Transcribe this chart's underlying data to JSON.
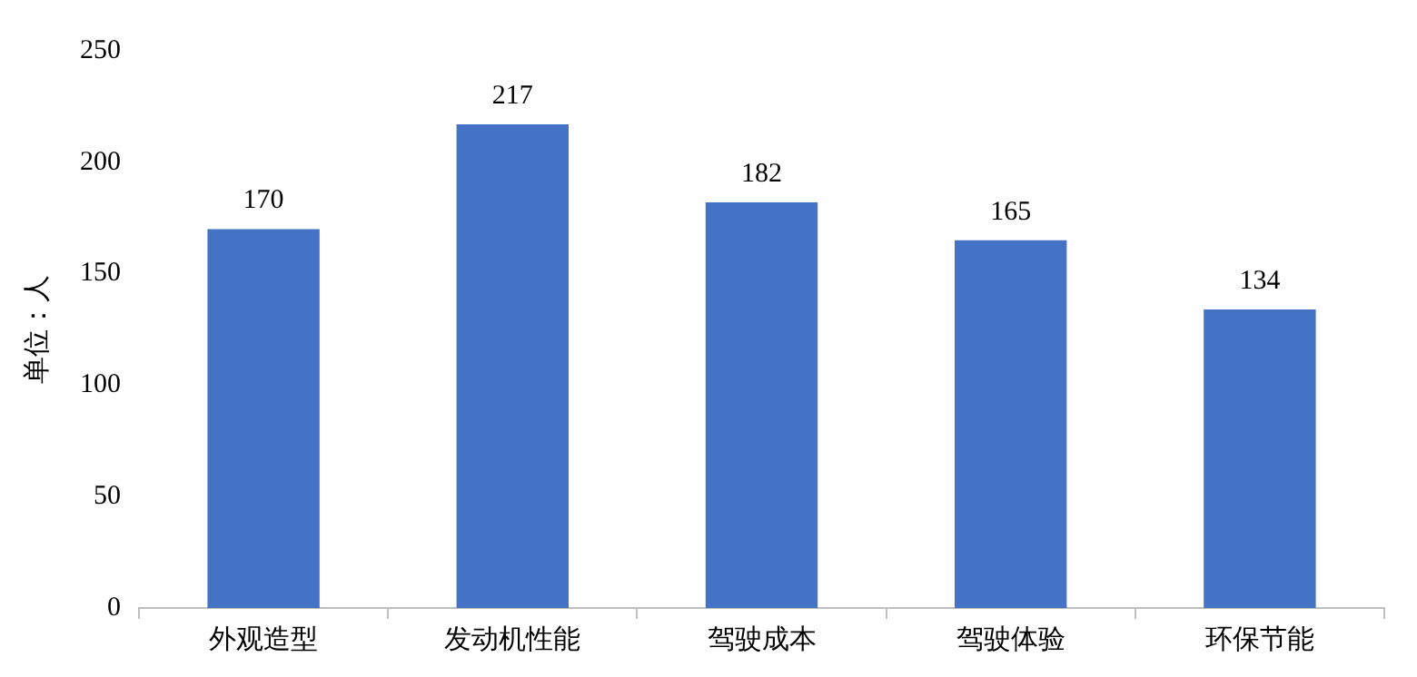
{
  "chart_data": {
    "type": "bar",
    "ylabel": "单位：人",
    "categories": [
      "外观造型",
      "发动机性能",
      "驾驶成本",
      "驾驶体验",
      "环保节能"
    ],
    "values": [
      170,
      217,
      182,
      165,
      134
    ],
    "color": "#4472c4",
    "ylim": [
      0,
      250
    ],
    "yticks": [
      0,
      50,
      100,
      150,
      200,
      250
    ],
    "data_labels": true,
    "grid": false,
    "legend": false
  }
}
